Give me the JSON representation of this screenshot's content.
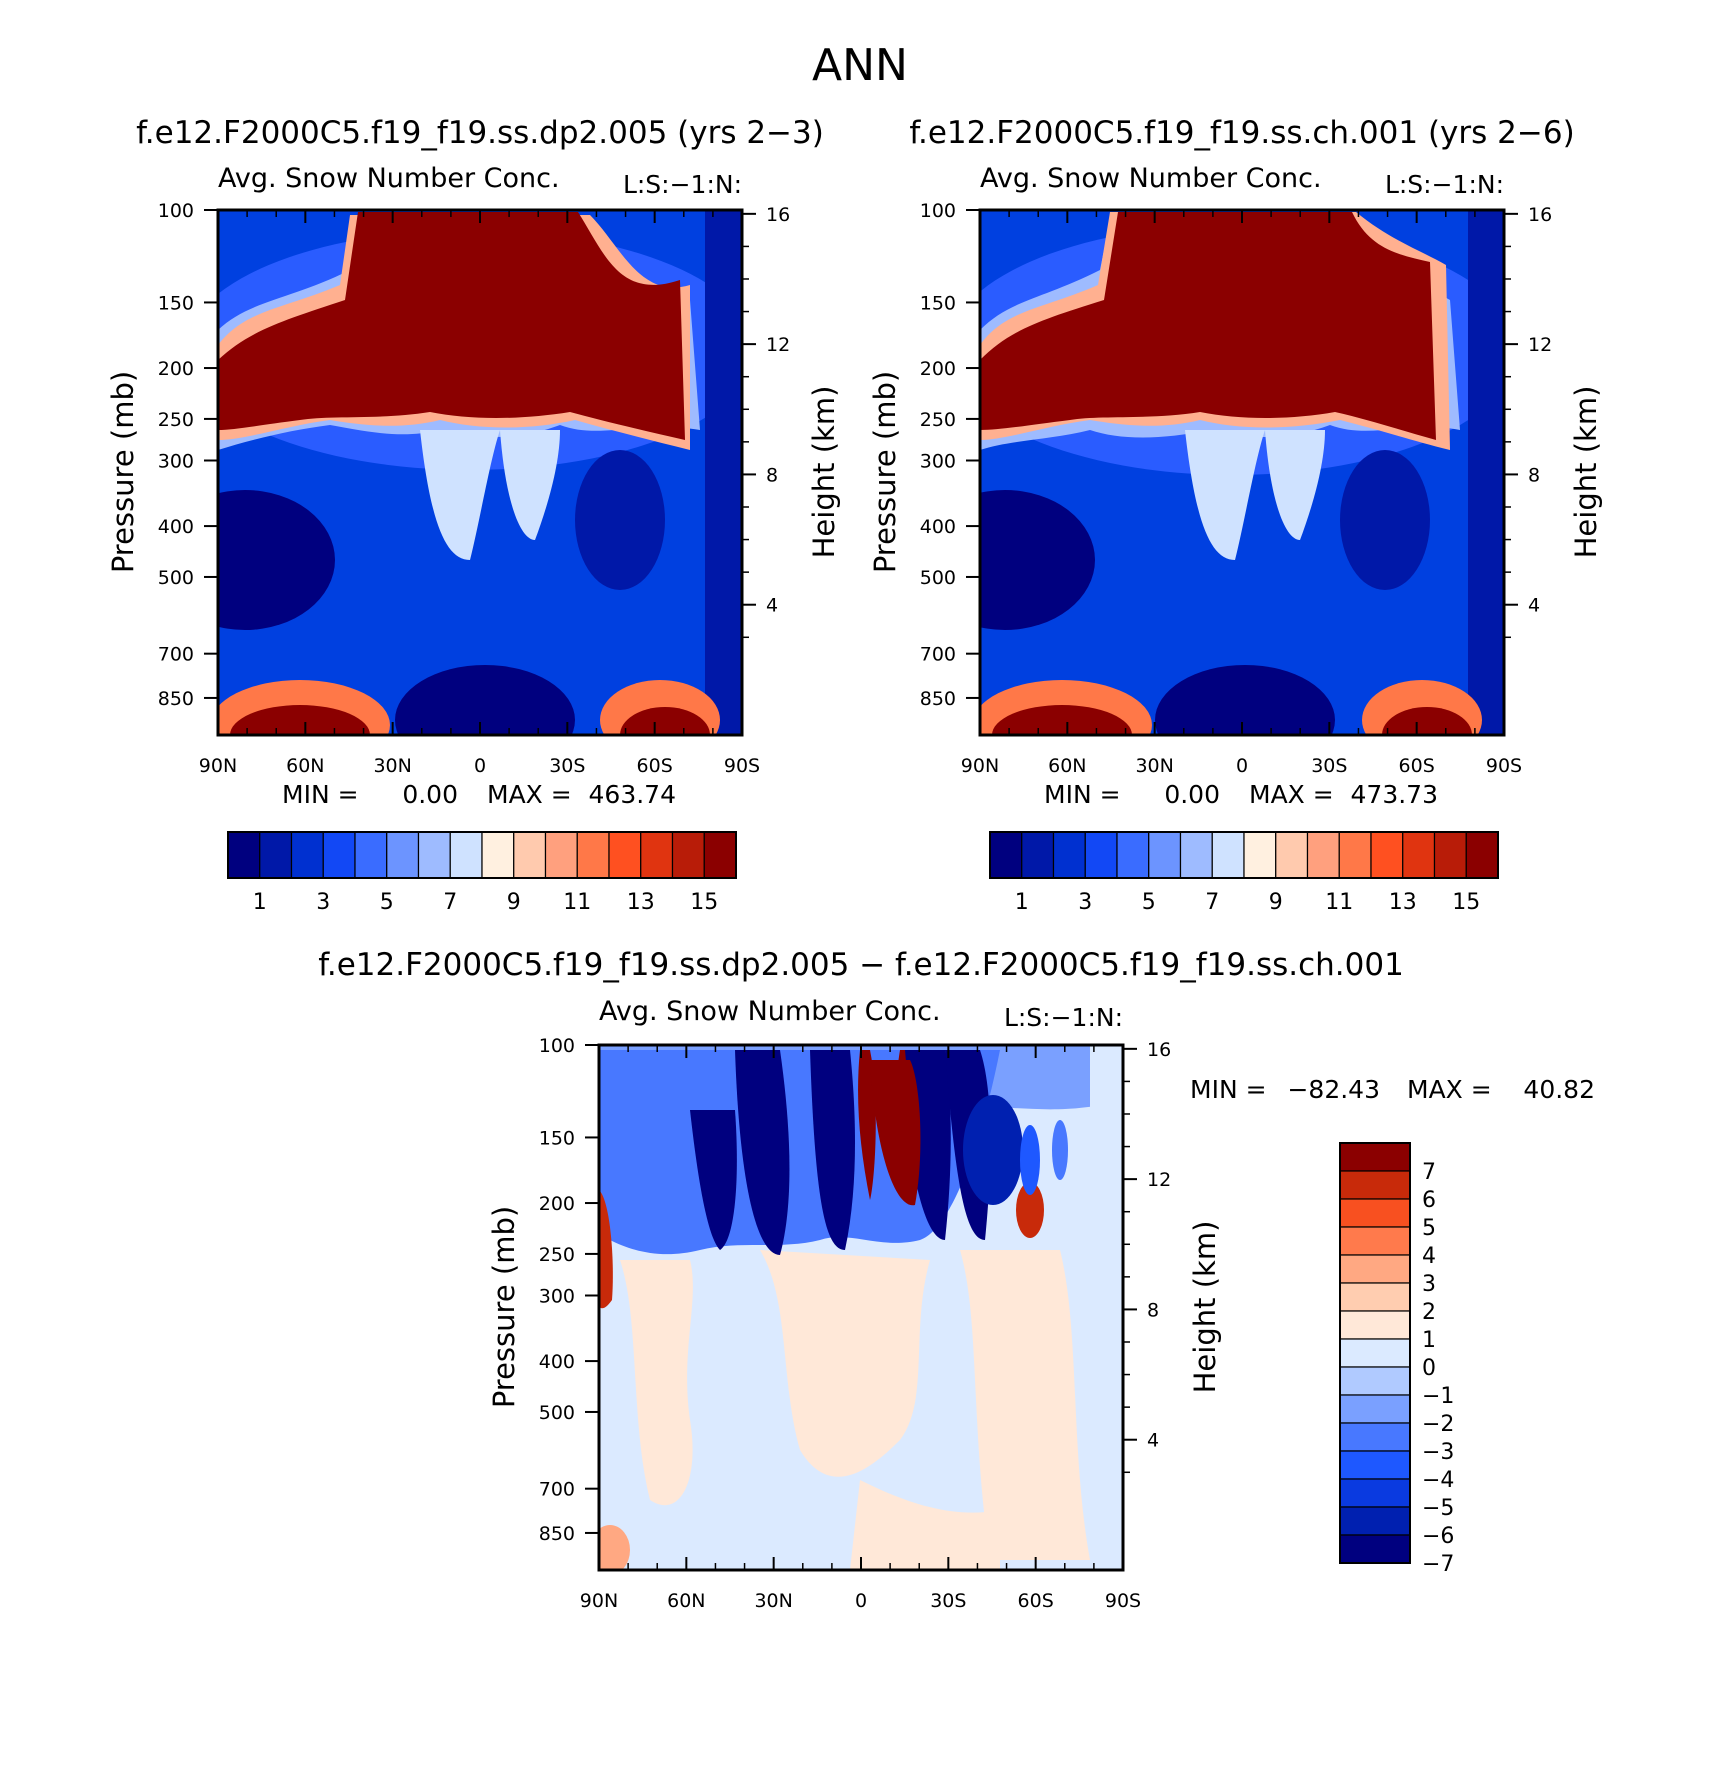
{
  "figure_title": "ANN",
  "colors": {
    "main_scale": [
      "#00007f",
      "#0018a8",
      "#0030d0",
      "#1248f5",
      "#3a6cff",
      "#6c94ff",
      "#9ebbff",
      "#cfe2ff",
      "#fff0e0",
      "#ffcaae",
      "#ffa07e",
      "#ff7848",
      "#ff5020",
      "#e03410",
      "#b81c08",
      "#8b0000"
    ],
    "diff_scale": [
      "#00007f",
      "#0020b0",
      "#0a3ae0",
      "#1e58ff",
      "#4878ff",
      "#7aa0ff",
      "#b0caff",
      "#dbeaff",
      "#ffe8d8",
      "#ffcdb0",
      "#ffa882",
      "#ff7a4c",
      "#f85020",
      "#c82a0a",
      "#8b0000"
    ]
  },
  "chart_data": [
    {
      "type": "heatmap",
      "title": "f.e12.F2000C5.f19_f19.ss.dp2.005 (yrs 2−3)",
      "subtitle_left": "Avg. Snow Number Conc.",
      "subtitle_right": "L:S:−1:N:",
      "ylabel": "Pressure (mb)",
      "ylabel_right": "Height (km)",
      "x_ticklabels": [
        "90N",
        "60N",
        "30N",
        "0",
        "30S",
        "60S",
        "90S"
      ],
      "x_ticks_deg": [
        90,
        60,
        30,
        0,
        -30,
        -60,
        -90
      ],
      "y_ticklabels": [
        "100",
        "150",
        "200",
        "250",
        "300",
        "400",
        "500",
        "700",
        "850"
      ],
      "y_ticks_mb": [
        100,
        150,
        200,
        250,
        300,
        400,
        500,
        700,
        850
      ],
      "y_right_ticklabels": [
        "16",
        "12",
        "8",
        "4"
      ],
      "y_right_ticks_km": [
        16,
        12,
        8,
        4
      ],
      "ylim_mb": [
        100,
        1000
      ],
      "min_label": "MIN =",
      "min_value": "0.00",
      "max_label": "MAX =",
      "max_value": "463.74",
      "colorbar_ticklabels": [
        "1",
        "3",
        "5",
        "7",
        "9",
        "11",
        "13",
        "15"
      ]
    },
    {
      "type": "heatmap",
      "title": "f.e12.F2000C5.f19_f19.ss.ch.001 (yrs 2−6)",
      "subtitle_left": "Avg. Snow Number Conc.",
      "subtitle_right": "L:S:−1:N:",
      "ylabel": "Pressure (mb)",
      "ylabel_right": "Height (km)",
      "x_ticklabels": [
        "90N",
        "60N",
        "30N",
        "0",
        "30S",
        "60S",
        "90S"
      ],
      "x_ticks_deg": [
        90,
        60,
        30,
        0,
        -30,
        -60,
        -90
      ],
      "y_ticklabels": [
        "100",
        "150",
        "200",
        "250",
        "300",
        "400",
        "500",
        "700",
        "850"
      ],
      "y_ticks_mb": [
        100,
        150,
        200,
        250,
        300,
        400,
        500,
        700,
        850
      ],
      "y_right_ticklabels": [
        "16",
        "12",
        "8",
        "4"
      ],
      "y_right_ticks_km": [
        16,
        12,
        8,
        4
      ],
      "ylim_mb": [
        100,
        1000
      ],
      "min_label": "MIN =",
      "min_value": "0.00",
      "max_label": "MAX =",
      "max_value": "473.73",
      "colorbar_ticklabels": [
        "1",
        "3",
        "5",
        "7",
        "9",
        "11",
        "13",
        "15"
      ]
    },
    {
      "type": "heatmap",
      "title": "f.e12.F2000C5.f19_f19.ss.dp2.005 − f.e12.F2000C5.f19_f19.ss.ch.001",
      "subtitle_left": "Avg. Snow Number Conc.",
      "subtitle_right": "L:S:−1:N:",
      "ylabel": "Pressure (mb)",
      "ylabel_right": "Height (km)",
      "x_ticklabels": [
        "90N",
        "60N",
        "30N",
        "0",
        "30S",
        "60S",
        "90S"
      ],
      "x_ticks_deg": [
        90,
        60,
        30,
        0,
        -30,
        -60,
        -90
      ],
      "y_ticklabels": [
        "100",
        "150",
        "200",
        "250",
        "300",
        "400",
        "500",
        "700",
        "850"
      ],
      "y_ticks_mb": [
        100,
        150,
        200,
        250,
        300,
        400,
        500,
        700,
        850
      ],
      "y_right_ticklabels": [
        "16",
        "12",
        "8",
        "4"
      ],
      "y_right_ticks_km": [
        16,
        12,
        8,
        4
      ],
      "ylim_mb": [
        100,
        1000
      ],
      "min_label": "MIN =",
      "min_value": "−82.43",
      "max_label": "MAX =",
      "max_value": "40.82",
      "colorbar_ticklabels": [
        "7",
        "6",
        "5",
        "4",
        "3",
        "2",
        "1",
        "0",
        "−1",
        "−2",
        "−3",
        "−4",
        "−5",
        "−6",
        "−7"
      ]
    }
  ]
}
